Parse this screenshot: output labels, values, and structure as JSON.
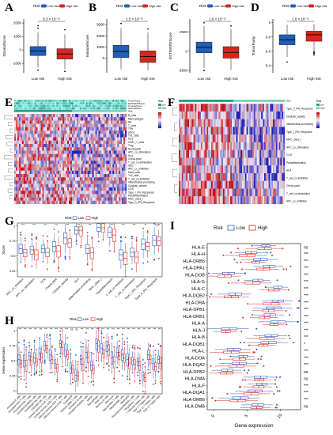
{
  "colors": {
    "low": "#1f5fb8",
    "high": "#d7261e",
    "lowLine": "#2b57c7",
    "highLine": "#e02a20",
    "heatLow": "#1f1fb5",
    "heatMid": "#f3eef6",
    "heatHigh": "#c40f1a",
    "topLow": "#1ea37e",
    "topHigh": "#7fd0b4"
  },
  "labels": {
    "A": "A",
    "B": "B",
    "C": "C",
    "D": "D",
    "E": "E",
    "F": "F",
    "G": "G",
    "H": "H",
    "I": "I"
  },
  "legend": {
    "risk": "Risk",
    "low_risk": "Low risk",
    "high_risk": "High risk",
    "low": "Low",
    "high": "High"
  },
  "chart_data": [
    {
      "id": "A",
      "type": "box",
      "categories": [
        "Low risk",
        "High risk"
      ],
      "ylabel": "StromalScore",
      "pvalue": "9.3 × 10⁻¹¹",
      "yticks": [
        -1000,
        0,
        1000,
        2000
      ],
      "ylim": [
        -1700,
        2300
      ],
      "boxes": [
        {
          "q1": -420,
          "med": -80,
          "q3": 250,
          "lo": -1300,
          "hi": 1300,
          "out": [
            -1500,
            1600,
            1800
          ]
        },
        {
          "q1": -680,
          "med": -300,
          "q3": 90,
          "lo": -1450,
          "hi": 1150,
          "out": [
            -1600,
            1500
          ]
        }
      ]
    },
    {
      "id": "B",
      "type": "box",
      "categories": [
        "Low risk",
        "High risk"
      ],
      "ylabel": "ImmuneScore",
      "pvalue": "1.5 × 10⁻¹¹",
      "yticks": [
        0,
        1000,
        2000,
        3000
      ],
      "ylim": [
        -1300,
        3500
      ],
      "boxes": [
        {
          "q1": 50,
          "med": 600,
          "q3": 1150,
          "lo": -1000,
          "hi": 2700,
          "out": [
            3100
          ]
        },
        {
          "q1": -380,
          "med": 150,
          "q3": 650,
          "lo": -1100,
          "hi": 2300,
          "out": [
            2600
          ]
        }
      ]
    },
    {
      "id": "C",
      "type": "box",
      "categories": [
        "Low risk",
        "High risk"
      ],
      "ylabel": "ESTIMATEScore",
      "pvalue": "1.6 × 10⁻¹¹",
      "yticks": [
        -2500,
        0,
        2500
      ],
      "ylim": [
        -2800,
        4200
      ],
      "boxes": [
        {
          "q1": -200,
          "med": 500,
          "q3": 1200,
          "lo": -2200,
          "hi": 3300,
          "out": [
            -2500,
            3700
          ]
        },
        {
          "q1": -900,
          "med": -150,
          "q3": 600,
          "lo": -2400,
          "hi": 2900,
          "out": [
            3300
          ]
        }
      ]
    },
    {
      "id": "D",
      "type": "box",
      "categories": [
        "Low risk",
        "High risk"
      ],
      "ylabel": "TumorPurity",
      "pvalue": "1.6 × 10⁻¹¹",
      "yticks": [
        0.4,
        0.6,
        0.8,
        1.0
      ],
      "ylim": [
        0.3,
        1.05
      ],
      "boxes": [
        {
          "q1": 0.69,
          "med": 0.76,
          "q3": 0.83,
          "lo": 0.52,
          "hi": 0.97,
          "out": [
            0.45
          ]
        },
        {
          "q1": 0.74,
          "med": 0.83,
          "q3": 0.88,
          "lo": 0.6,
          "hi": 0.98,
          "out": [
            0.55,
            0.57,
            0.58,
            0.59
          ]
        }
      ]
    },
    {
      "id": "E",
      "type": "heatmap",
      "annotations": [
        "TumorPurity",
        "ESTIMATEScore",
        "ImmuneScore",
        "StromalScore",
        "Risk"
      ],
      "rows": [
        "B_cells",
        "Macrophages",
        "NK",
        "T_cells",
        "TFH",
        "pDCs",
        "Th1_cells",
        "DCs",
        "CD8+_T_cells",
        "Treg",
        "Neutrophils",
        "APC_co_stimulation",
        "HLA",
        "Check-point",
        "T_cell_co-stimulation",
        "iDCs",
        "APC_co_inhibition",
        "Mast_cells",
        "Th2_cells",
        "T_cell_co-inhibition",
        "Inflammation-promoting",
        "Cytolytic_activity",
        "CCR",
        "Type_I_IFN_Response",
        "Parainflammation",
        "MHC_class_I",
        "Type_II_IFN_Response"
      ],
      "legend_risk": [
        "low",
        "high"
      ]
    },
    {
      "id": "F",
      "type": "heatmap",
      "annotations": [
        "Risk"
      ],
      "rows": [
        "Type_II_IFN_Response",
        "Cytolytic_activity",
        "Inflammation-promoting",
        "Type_I_IFN_Response",
        "MHC_class_I",
        "APC_co_stimulation",
        "CCR",
        "Parainflammation",
        "HLA",
        "T_cell_co-inhibition",
        "Check-point",
        "T_cell_co-stimulation",
        "APC_co_inhibition"
      ],
      "legend_risk": [
        "low",
        "high"
      ]
    },
    {
      "id": "G",
      "type": "box",
      "ylabel": "Score",
      "categories": [
        "APC_co_inhibition",
        "APC_co_stimulation",
        "CCR",
        "Check-point",
        "Cytolytic_activity",
        "HLA",
        "Inflammation-promoting",
        "MHC_class_I",
        "Parainflammation",
        "T_cell_co-inhibition",
        "T_cell_co-stimulation",
        "Type_I_IFN_Response",
        "Type_II_IFN_Response"
      ],
      "signif": [
        "***",
        "***",
        "***",
        "***",
        "***",
        "***",
        "***",
        "***",
        "***",
        "***",
        "***",
        "**",
        "ns"
      ],
      "yticks": [
        0.25,
        0.5,
        0.75,
        1.0
      ],
      "ylim": [
        0.15,
        1.05
      ],
      "series": [
        {
          "name": "Low",
          "med": [
            0.62,
            0.6,
            0.62,
            0.66,
            0.8,
            0.93,
            0.62,
            0.98,
            0.9,
            0.52,
            0.56,
            0.7,
            0.76
          ]
        },
        {
          "name": "High",
          "med": [
            0.55,
            0.52,
            0.56,
            0.58,
            0.72,
            0.92,
            0.55,
            0.97,
            0.85,
            0.46,
            0.48,
            0.66,
            0.75
          ]
        }
      ]
    },
    {
      "id": "H",
      "type": "box",
      "ylabel": "Gene expression",
      "categories": [
        "Activated B cells",
        "Activated CD4 T cells",
        "Activated CD8 T cells",
        "Activated dendritic cells",
        "CD56bright NK cells",
        "CD56dim NK cells",
        "Central memory CD4 T cells",
        "Central memory CD8 T cells",
        "Effector memory CD4 T cells",
        "Effector memory CD8 T cells",
        "Eosinophil",
        "Gamma delta T cells",
        "Immature B cells",
        "Immature dendritic cells",
        "MDSC",
        "Macrophage",
        "Mast cells",
        "Memory B cells",
        "Monocyte",
        "Natural killer T cells",
        "Natural killer cells",
        "Neutrophil",
        "Plasmacytoid dendritic cells",
        "Regulatory T cells",
        "T follicular helper cells",
        "Type 1 T helper cells",
        "Type 17 T helper cells",
        "Type 2 T helper cells"
      ],
      "signif": [
        "***",
        "***",
        "***",
        "***",
        "***",
        "***",
        "***",
        "***",
        "***",
        "***",
        "ns",
        "ns",
        "***",
        "***",
        "***",
        "***",
        "***",
        "***",
        "***",
        "***",
        "***",
        "***",
        "***",
        "***",
        "***",
        "***",
        "***",
        "***"
      ],
      "yticks": [
        0,
        0.25,
        0.5,
        0.75,
        1
      ],
      "ylim": [
        -0.05,
        1.05
      ],
      "series": [
        {
          "name": "Low",
          "med": [
            0.52,
            0.5,
            0.58,
            0.55,
            0.62,
            0.75,
            0.6,
            0.45,
            0.78,
            0.68,
            0.38,
            0.26,
            0.52,
            0.64,
            0.42,
            0.78,
            0.7,
            0.74,
            0.55,
            0.64,
            0.6,
            0.52,
            0.5,
            0.48,
            0.25,
            0.6,
            0.45,
            0.52
          ]
        },
        {
          "name": "High",
          "med": [
            0.45,
            0.42,
            0.5,
            0.48,
            0.55,
            0.7,
            0.52,
            0.38,
            0.72,
            0.6,
            0.36,
            0.25,
            0.44,
            0.56,
            0.36,
            0.74,
            0.62,
            0.68,
            0.48,
            0.58,
            0.54,
            0.46,
            0.44,
            0.42,
            0.22,
            0.52,
            0.4,
            0.46
          ]
        }
      ]
    },
    {
      "id": "I",
      "type": "box",
      "orientation": "horizontal",
      "xlabel": "Gene expression",
      "categories": [
        "HLA-E",
        "HLA-H",
        "HLA-DRB5",
        "HLA-DPA1",
        "HLA-DOB",
        "HLA-G",
        "HLA-C",
        "HLA-DQB2",
        "HLA-DRA",
        "HLA-DPB1",
        "HLA-DRB1",
        "HLA-A",
        "HLA-J",
        "HLA-B",
        "HLA-DQB1",
        "HLA-L",
        "HLA-DOA",
        "HLA-DQA2",
        "HLA-DPB2",
        "HLA-DMA",
        "HLA-F",
        "HLA-DQA1",
        "HLA-DRB6",
        "HLA-DMB"
      ],
      "signif": [
        "ns",
        "***",
        "***",
        "***",
        "***",
        "***",
        "***",
        "***",
        "***",
        "***",
        "***",
        "***",
        "***",
        "***",
        "*",
        "***",
        "***",
        "***",
        "ns",
        "ns",
        "***",
        "***",
        "***",
        "ns"
      ],
      "xticks": [
        0,
        5,
        10
      ],
      "xlim": [
        -1,
        13
      ],
      "series": [
        {
          "name": "Low",
          "med": [
            7.8,
            5.6,
            7.0,
            8.3,
            2.2,
            6.6,
            9.6,
            3.2,
            9.6,
            9.0,
            8.4,
            9.6,
            2.3,
            8.6,
            8.2,
            3.0,
            4.4,
            3.8,
            2.0,
            7.0,
            7.2,
            6.2,
            4.0,
            6.6
          ]
        },
        {
          "name": "High",
          "med": [
            7.6,
            5.0,
            6.3,
            7.4,
            1.6,
            5.8,
            9.0,
            2.6,
            8.6,
            8.2,
            7.6,
            9.0,
            1.8,
            8.0,
            7.4,
            2.6,
            3.8,
            3.4,
            1.9,
            6.8,
            6.7,
            5.6,
            3.6,
            6.4
          ]
        }
      ]
    }
  ]
}
